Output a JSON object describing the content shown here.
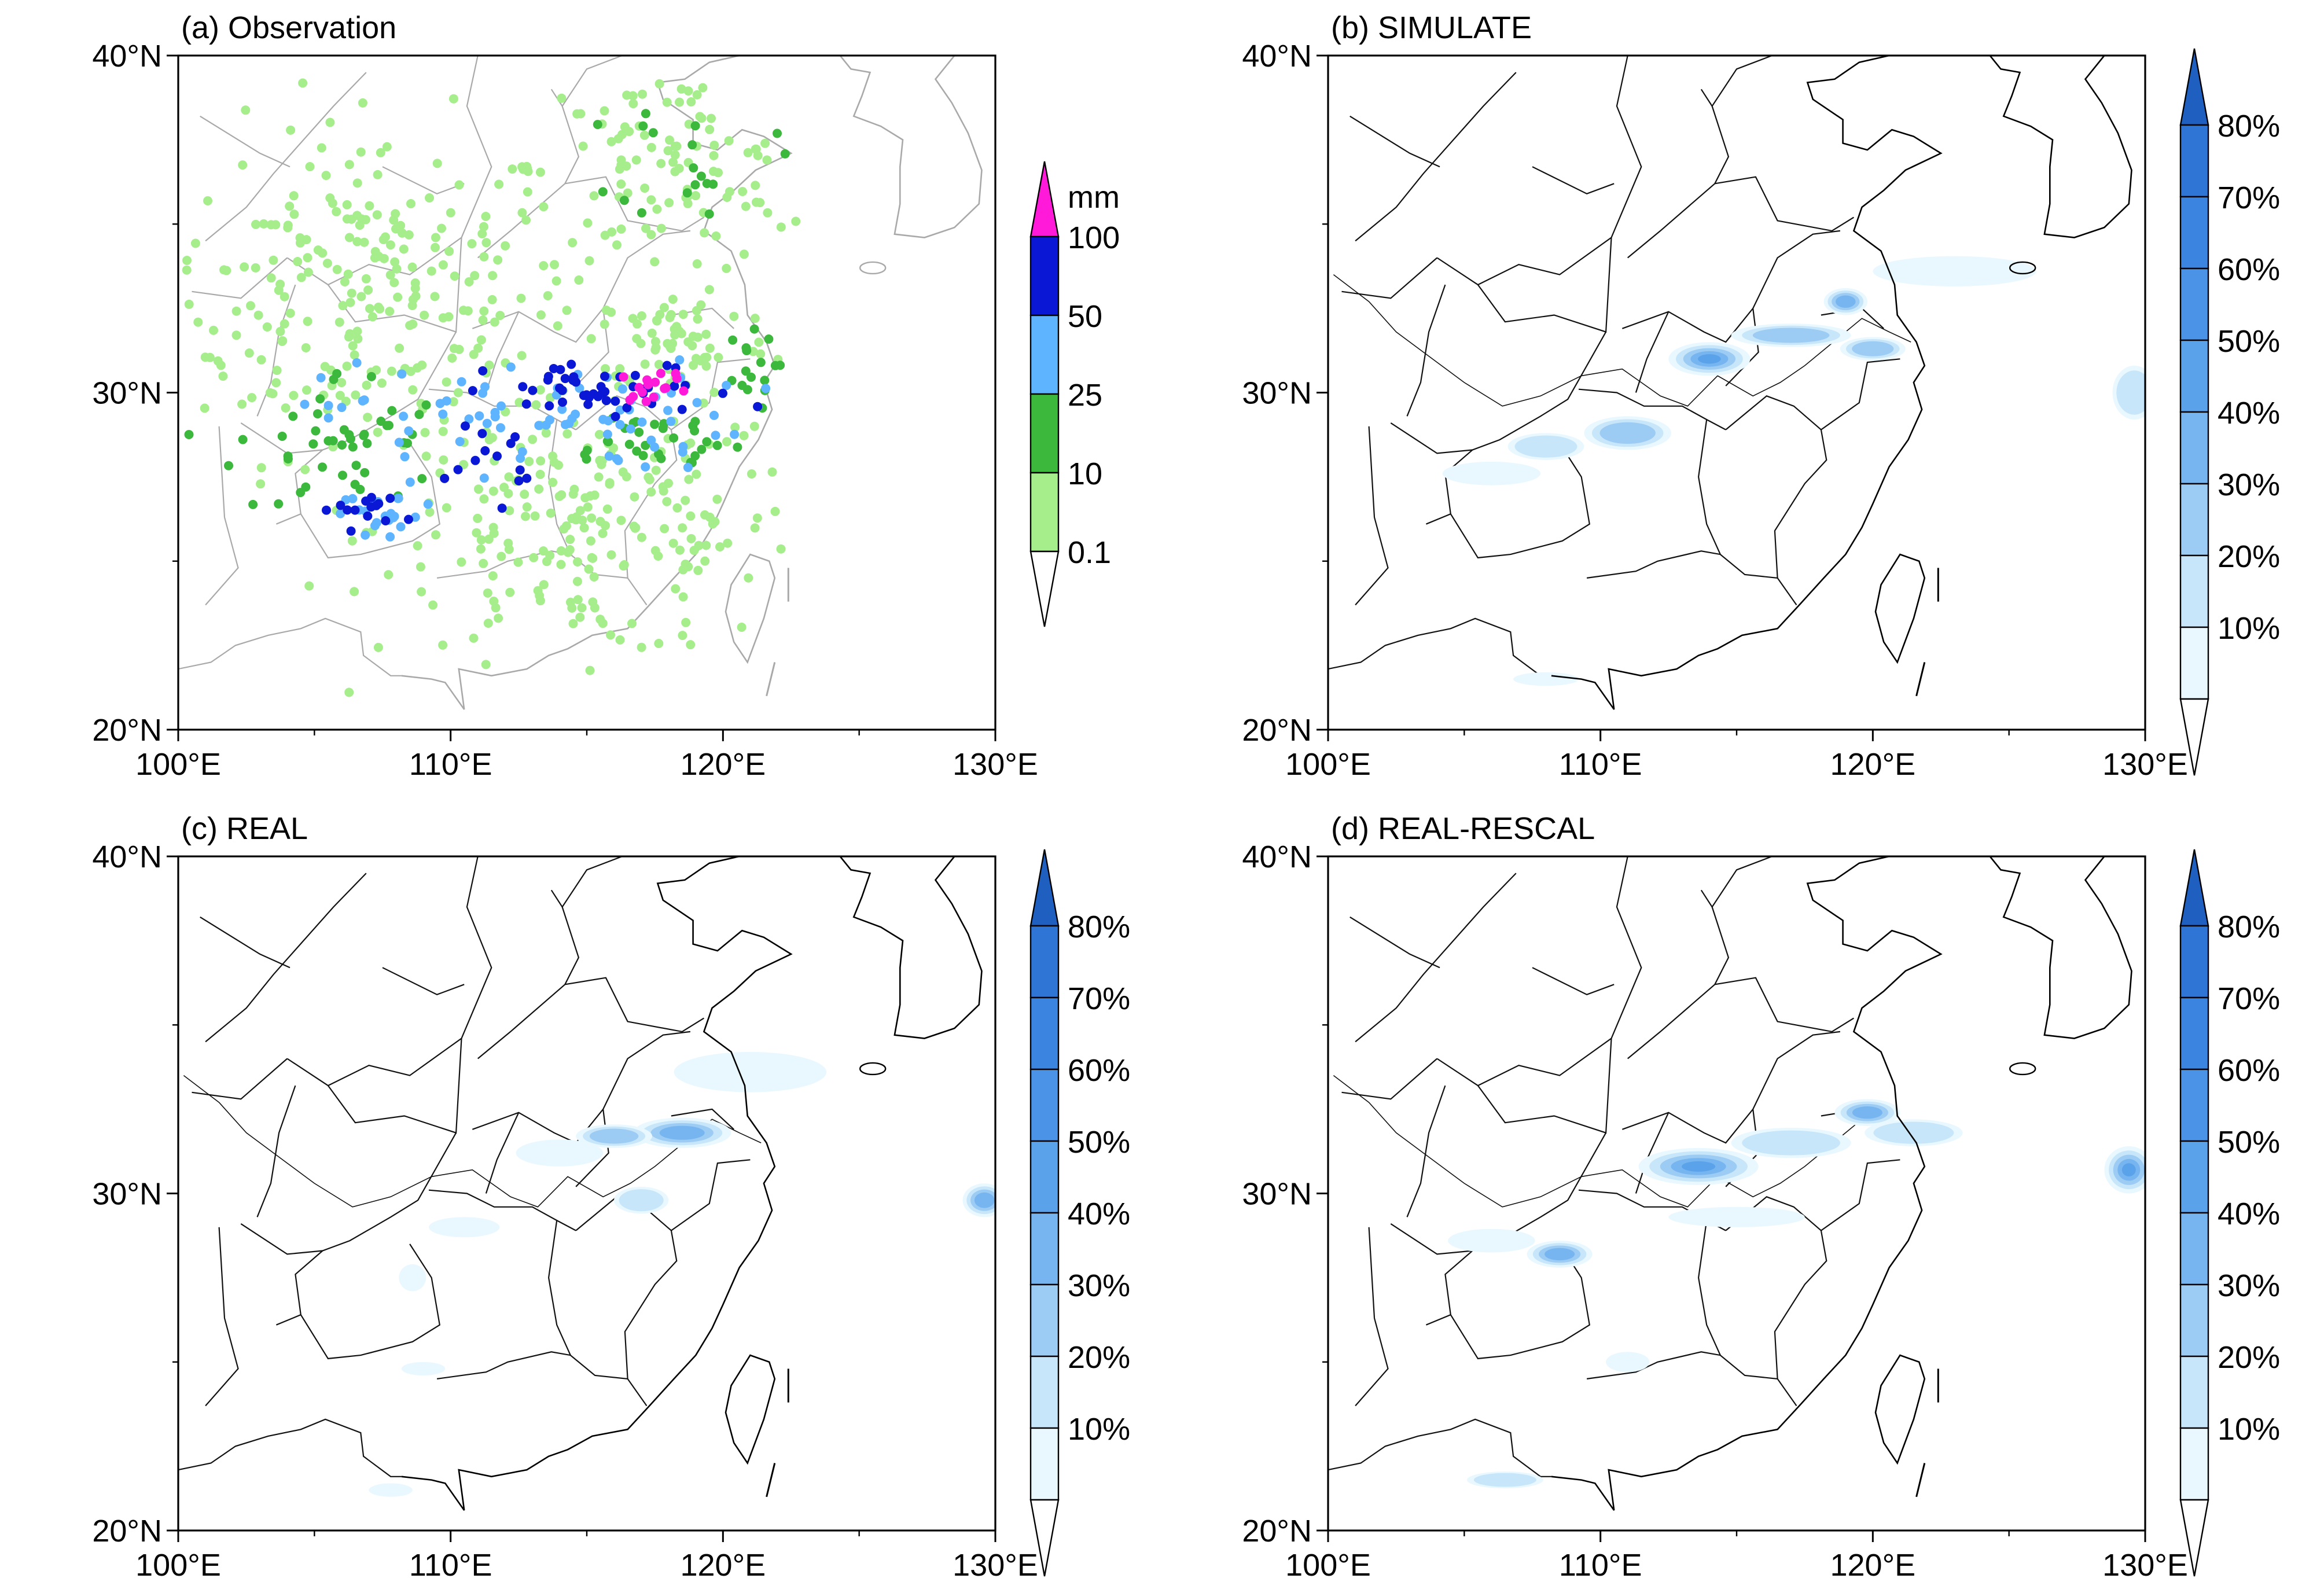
{
  "lon_ticks": [
    "100°E",
    "110°E",
    "120°E",
    "130°E"
  ],
  "lat_ticks": [
    "20°N",
    "30°N",
    "40°N"
  ],
  "extent": {
    "lon": [
      100,
      130
    ],
    "lat": [
      20,
      40
    ]
  },
  "panels": [
    {
      "id": "a",
      "title": "(a)  Observation",
      "kind": "observation",
      "colorbar": {
        "unit": "mm",
        "labels": [
          "100",
          "50",
          "25",
          "10",
          "0.1"
        ],
        "colors": [
          "#ff1ad9",
          "#0a18d6",
          "#5eb4ff",
          "#3cb83c",
          "#a6ee8c"
        ],
        "under_color": "#ffffff",
        "over_color": "#ff1ad9"
      },
      "zones": [
        {
          "category": "0.1-10",
          "lon": 107,
          "lat": 33,
          "rlon": 7,
          "rlat": 4.5,
          "n": 260
        },
        {
          "category": "0.1-10",
          "lon": 115,
          "lat": 26,
          "rlon": 7,
          "rlat": 3.5,
          "n": 230
        },
        {
          "category": "0.1-10",
          "lon": 118,
          "lat": 36.5,
          "rlon": 4.5,
          "rlat": 2.8,
          "n": 110
        },
        {
          "category": "0.1-10",
          "lon": 118.5,
          "lat": 31.5,
          "rlon": 3,
          "rlat": 1.5,
          "n": 60
        },
        {
          "category": "10-25",
          "lon": 106,
          "lat": 28.5,
          "rlon": 3.5,
          "rlat": 2,
          "n": 45
        },
        {
          "category": "10-25",
          "lon": 119,
          "lat": 37,
          "rlon": 2.5,
          "rlat": 1.6,
          "n": 18
        },
        {
          "category": "10-25",
          "lon": 117,
          "lat": 28.6,
          "rlon": 3.5,
          "rlat": 0.9,
          "n": 30
        },
        {
          "category": "10-25",
          "lon": 120.8,
          "lat": 30.6,
          "rlon": 1,
          "rlat": 1,
          "n": 16
        },
        {
          "category": "25-50",
          "lon": 113,
          "lat": 29.3,
          "rlon": 7,
          "rlat": 1.5,
          "n": 75
        },
        {
          "category": "25-50",
          "lon": 107.5,
          "lat": 26.4,
          "rlon": 2.2,
          "rlat": 0.8,
          "n": 22
        },
        {
          "category": "50-100",
          "lon": 116,
          "lat": 30,
          "rlon": 4.2,
          "rlat": 0.8,
          "n": 45
        },
        {
          "category": "50-100",
          "lon": 111.5,
          "lat": 28.3,
          "rlon": 1.4,
          "rlat": 1.2,
          "n": 14
        },
        {
          "category": "50-100",
          "lon": 106.8,
          "lat": 26.5,
          "rlon": 1.4,
          "rlat": 0.5,
          "n": 14
        },
        {
          "category": ">100",
          "lon": 117.6,
          "lat": 30.2,
          "rlon": 1.2,
          "rlat": 0.4,
          "n": 16
        }
      ]
    },
    {
      "id": "b",
      "title": "(b)  SIMULATE",
      "kind": "probability",
      "colorbar": {
        "labels": [
          "80%",
          "70%",
          "60%",
          "50%",
          "40%",
          "30%",
          "20%",
          "10%"
        ],
        "colors": [
          "#2f75d6",
          "#3b84df",
          "#4a93e6",
          "#5aa2ea",
          "#76b5ef",
          "#9ccbf4",
          "#c8e6fa",
          "#e9f8ff"
        ],
        "under_color": "#ffffff",
        "over_color": "#1f5fc0"
      },
      "blobs": [
        {
          "lon": 114,
          "lat": 31,
          "rlon": 1.5,
          "rlat": 0.5,
          "level": 4
        },
        {
          "lon": 119,
          "lat": 32.7,
          "rlon": 0.8,
          "rlat": 0.4,
          "level": 3
        },
        {
          "lon": 117,
          "lat": 31.7,
          "rlon": 2.2,
          "rlat": 0.35,
          "level": 2
        },
        {
          "lon": 120,
          "lat": 31.3,
          "rlon": 1.2,
          "rlat": 0.35,
          "level": 2
        },
        {
          "lon": 111,
          "lat": 28.8,
          "rlon": 1.6,
          "rlat": 0.5,
          "level": 2
        },
        {
          "lon": 108,
          "lat": 28.4,
          "rlon": 1.4,
          "rlat": 0.4,
          "level": 1
        },
        {
          "lon": 123,
          "lat": 33.6,
          "rlon": 3,
          "rlat": 0.45,
          "level": 0
        },
        {
          "lon": 129.6,
          "lat": 30,
          "rlon": 0.8,
          "rlat": 0.8,
          "level": 1
        },
        {
          "lon": 106,
          "lat": 27.6,
          "rlon": 1.8,
          "rlat": 0.35,
          "level": 0
        },
        {
          "lon": 108,
          "lat": 21.5,
          "rlon": 1.2,
          "rlat": 0.2,
          "level": 0
        }
      ]
    },
    {
      "id": "c",
      "title": "(c)    REAL",
      "kind": "probability",
      "colorbar": {
        "labels": [
          "80%",
          "70%",
          "60%",
          "50%",
          "40%",
          "30%",
          "20%",
          "10%"
        ],
        "colors": [
          "#2f75d6",
          "#3b84df",
          "#4a93e6",
          "#5aa2ea",
          "#76b5ef",
          "#9ccbf4",
          "#c8e6fa",
          "#e9f8ff"
        ],
        "under_color": "#ffffff",
        "over_color": "#1f5fc0"
      },
      "blobs": [
        {
          "lon": 118.5,
          "lat": 31.8,
          "rlon": 1.8,
          "rlat": 0.45,
          "level": 3
        },
        {
          "lon": 116,
          "lat": 31.7,
          "rlon": 1.4,
          "rlat": 0.35,
          "level": 2
        },
        {
          "lon": 121,
          "lat": 33.6,
          "rlon": 2.8,
          "rlat": 0.6,
          "level": 0
        },
        {
          "lon": 114,
          "lat": 31.2,
          "rlon": 1.6,
          "rlat": 0.4,
          "level": 0
        },
        {
          "lon": 117,
          "lat": 29.8,
          "rlon": 1,
          "rlat": 0.4,
          "level": 1
        },
        {
          "lon": 129.6,
          "lat": 29.8,
          "rlon": 0.8,
          "rlat": 0.5,
          "level": 3
        },
        {
          "lon": 110.5,
          "lat": 29,
          "rlon": 1.3,
          "rlat": 0.3,
          "level": 0
        },
        {
          "lon": 108.6,
          "lat": 27.5,
          "rlon": 0.5,
          "rlat": 0.4,
          "level": 0
        },
        {
          "lon": 109,
          "lat": 24.8,
          "rlon": 0.8,
          "rlat": 0.2,
          "level": 0
        },
        {
          "lon": 107.8,
          "lat": 21.2,
          "rlon": 0.8,
          "rlat": 0.2,
          "level": 0
        }
      ]
    },
    {
      "id": "d",
      "title": "(d)  REAL-RESCAL",
      "kind": "probability",
      "colorbar": {
        "labels": [
          "80%",
          "70%",
          "60%",
          "50%",
          "40%",
          "30%",
          "20%",
          "10%"
        ],
        "colors": [
          "#2f75d6",
          "#3b84df",
          "#4a93e6",
          "#5aa2ea",
          "#76b5ef",
          "#9ccbf4",
          "#c8e6fa",
          "#e9f8ff"
        ],
        "under_color": "#ffffff",
        "over_color": "#1f5fc0"
      },
      "blobs": [
        {
          "lon": 113.6,
          "lat": 30.8,
          "rlon": 2.2,
          "rlat": 0.55,
          "level": 4
        },
        {
          "lon": 119.8,
          "lat": 32.4,
          "rlon": 1.2,
          "rlat": 0.4,
          "level": 3
        },
        {
          "lon": 117,
          "lat": 31.5,
          "rlon": 2.2,
          "rlat": 0.45,
          "level": 1
        },
        {
          "lon": 121.5,
          "lat": 31.8,
          "rlon": 1.8,
          "rlat": 0.4,
          "level": 1
        },
        {
          "lon": 108.5,
          "lat": 28.2,
          "rlon": 1.2,
          "rlat": 0.4,
          "level": 3
        },
        {
          "lon": 106,
          "lat": 28.6,
          "rlon": 1.6,
          "rlat": 0.35,
          "level": 0
        },
        {
          "lon": 129.4,
          "lat": 30.7,
          "rlon": 0.9,
          "rlat": 0.7,
          "level": 4
        },
        {
          "lon": 115,
          "lat": 29.3,
          "rlon": 2.5,
          "rlat": 0.3,
          "level": 0
        },
        {
          "lon": 111,
          "lat": 25,
          "rlon": 0.8,
          "rlat": 0.3,
          "level": 0
        },
        {
          "lon": 106.5,
          "lat": 21.5,
          "rlon": 1.4,
          "rlat": 0.25,
          "level": 1
        }
      ]
    }
  ]
}
